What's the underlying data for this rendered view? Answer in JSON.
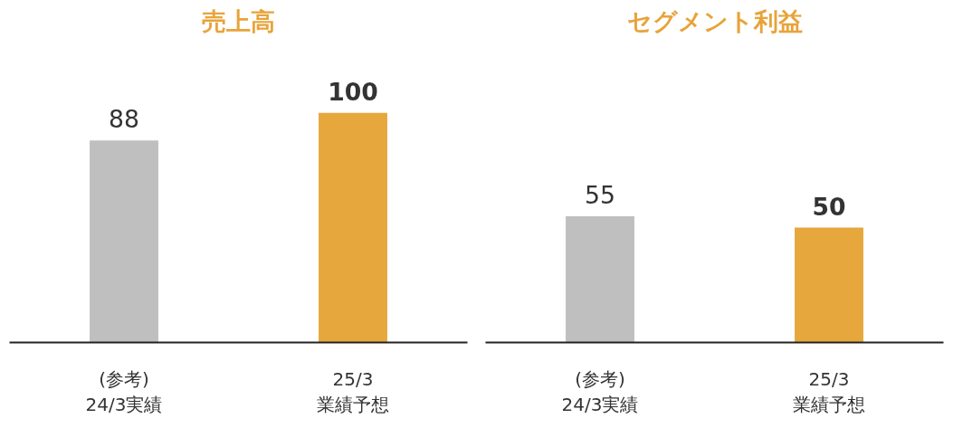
{
  "chart_data": [
    {
      "type": "bar",
      "title": "売上高",
      "categories": [
        "(参考)\n24/3実績",
        "25/3\n業績予想"
      ],
      "values": [
        88,
        100
      ],
      "colors": [
        "#bfbfbf",
        "#e6a73c"
      ],
      "data_labels": true,
      "tick_labels": "x",
      "grid": false
    },
    {
      "type": "bar",
      "title": "セグメント利益",
      "categories": [
        "(参考)\n24/3実績",
        "25/3\n業績予想"
      ],
      "values": [
        55,
        50
      ],
      "colors": [
        "#bfbfbf",
        "#e6a73c"
      ],
      "data_labels": true,
      "tick_labels": "x",
      "grid": false
    }
  ]
}
